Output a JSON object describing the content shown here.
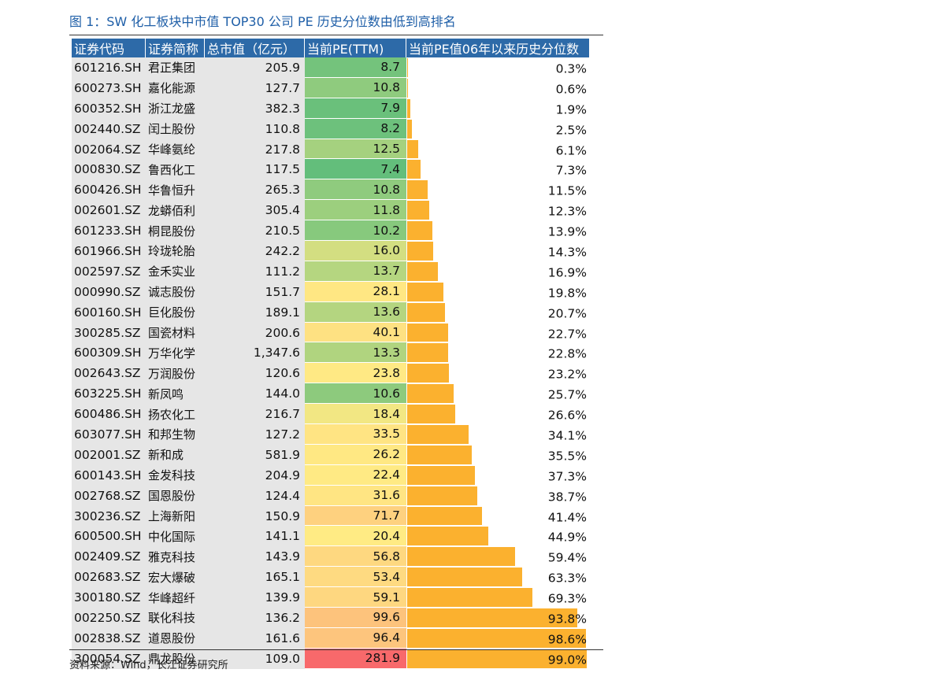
{
  "title": "图 1：SW 化工板块中市值 TOP30 公司 PE 历史分位数由低到高排名",
  "source": "资料来源：Wind，长江证券研究所",
  "columns": [
    "证券代码",
    "证券简称",
    "总市值（亿元）",
    "当前PE(TTM)",
    "当前PE值06年以来历史分位数"
  ],
  "colors": {
    "header": "#2d6aa8",
    "bar": "#fbb12f",
    "pe_low": "#63be7b",
    "pe_mid": "#ffeb84",
    "pe_high": "#f8696b"
  },
  "rows": [
    {
      "code": "601216.SH",
      "name": "君正集团",
      "cap": "205.9",
      "pe": "8.7",
      "pct": "0.3%",
      "pct_value": 0.3
    },
    {
      "code": "600273.SH",
      "name": "嘉化能源",
      "cap": "127.7",
      "pe": "10.8",
      "pct": "0.6%",
      "pct_value": 0.6
    },
    {
      "code": "600352.SH",
      "name": "浙江龙盛",
      "cap": "382.3",
      "pe": "7.9",
      "pct": "1.9%",
      "pct_value": 1.9
    },
    {
      "code": "002440.SZ",
      "name": "闰土股份",
      "cap": "110.8",
      "pe": "8.2",
      "pct": "2.5%",
      "pct_value": 2.5
    },
    {
      "code": "002064.SZ",
      "name": "华峰氨纶",
      "cap": "217.8",
      "pe": "12.5",
      "pct": "6.1%",
      "pct_value": 6.1
    },
    {
      "code": "000830.SZ",
      "name": "鲁西化工",
      "cap": "117.5",
      "pe": "7.4",
      "pct": "7.3%",
      "pct_value": 7.3
    },
    {
      "code": "600426.SH",
      "name": "华鲁恒升",
      "cap": "265.3",
      "pe": "10.8",
      "pct": "11.5%",
      "pct_value": 11.5
    },
    {
      "code": "002601.SZ",
      "name": "龙蟒佰利",
      "cap": "305.4",
      "pe": "11.8",
      "pct": "12.3%",
      "pct_value": 12.3
    },
    {
      "code": "601233.SH",
      "name": "桐昆股份",
      "cap": "210.5",
      "pe": "10.2",
      "pct": "13.9%",
      "pct_value": 13.9
    },
    {
      "code": "601966.SH",
      "name": "玲珑轮胎",
      "cap": "242.2",
      "pe": "16.0",
      "pct": "14.3%",
      "pct_value": 14.3
    },
    {
      "code": "002597.SZ",
      "name": "金禾实业",
      "cap": "111.2",
      "pe": "13.7",
      "pct": "16.9%",
      "pct_value": 16.9
    },
    {
      "code": "000990.SZ",
      "name": "诚志股份",
      "cap": "151.7",
      "pe": "28.1",
      "pct": "19.8%",
      "pct_value": 19.8
    },
    {
      "code": "600160.SH",
      "name": "巨化股份",
      "cap": "189.1",
      "pe": "13.6",
      "pct": "20.7%",
      "pct_value": 20.7
    },
    {
      "code": "300285.SZ",
      "name": "国瓷材料",
      "cap": "200.6",
      "pe": "40.1",
      "pct": "22.7%",
      "pct_value": 22.7
    },
    {
      "code": "600309.SH",
      "name": "万华化学",
      "cap": "1,347.6",
      "pe": "13.3",
      "pct": "22.8%",
      "pct_value": 22.8
    },
    {
      "code": "002643.SZ",
      "name": "万润股份",
      "cap": "120.6",
      "pe": "23.8",
      "pct": "23.2%",
      "pct_value": 23.2
    },
    {
      "code": "603225.SH",
      "name": "新凤鸣",
      "cap": "144.0",
      "pe": "10.6",
      "pct": "25.7%",
      "pct_value": 25.7
    },
    {
      "code": "600486.SH",
      "name": "扬农化工",
      "cap": "216.7",
      "pe": "18.4",
      "pct": "26.6%",
      "pct_value": 26.6
    },
    {
      "code": "603077.SH",
      "name": "和邦生物",
      "cap": "127.2",
      "pe": "33.5",
      "pct": "34.1%",
      "pct_value": 34.1
    },
    {
      "code": "002001.SZ",
      "name": "新和成",
      "cap": "581.9",
      "pe": "26.2",
      "pct": "35.5%",
      "pct_value": 35.5
    },
    {
      "code": "600143.SH",
      "name": "金发科技",
      "cap": "204.9",
      "pe": "22.4",
      "pct": "37.3%",
      "pct_value": 37.3
    },
    {
      "code": "002768.SZ",
      "name": "国恩股份",
      "cap": "124.4",
      "pe": "31.6",
      "pct": "38.7%",
      "pct_value": 38.7
    },
    {
      "code": "300236.SZ",
      "name": "上海新阳",
      "cap": "150.9",
      "pe": "71.7",
      "pct": "41.4%",
      "pct_value": 41.4
    },
    {
      "code": "600500.SH",
      "name": "中化国际",
      "cap": "141.1",
      "pe": "20.4",
      "pct": "44.9%",
      "pct_value": 44.9
    },
    {
      "code": "002409.SZ",
      "name": "雅克科技",
      "cap": "143.9",
      "pe": "56.8",
      "pct": "59.4%",
      "pct_value": 59.4
    },
    {
      "code": "002683.SZ",
      "name": "宏大爆破",
      "cap": "165.1",
      "pe": "53.4",
      "pct": "63.3%",
      "pct_value": 63.3
    },
    {
      "code": "300180.SZ",
      "name": "华峰超纤",
      "cap": "139.9",
      "pe": "59.1",
      "pct": "69.3%",
      "pct_value": 69.3
    },
    {
      "code": "002250.SZ",
      "name": "联化科技",
      "cap": "136.2",
      "pe": "99.6",
      "pct": "93.8%",
      "pct_value": 93.8
    },
    {
      "code": "002838.SZ",
      "name": "道恩股份",
      "cap": "161.6",
      "pe": "96.4",
      "pct": "98.6%",
      "pct_value": 98.6
    },
    {
      "code": "300054.SZ",
      "name": "鼎龙股份",
      "cap": "109.0",
      "pe": "281.9",
      "pct": "99.0%",
      "pct_value": 99.0
    }
  ]
}
